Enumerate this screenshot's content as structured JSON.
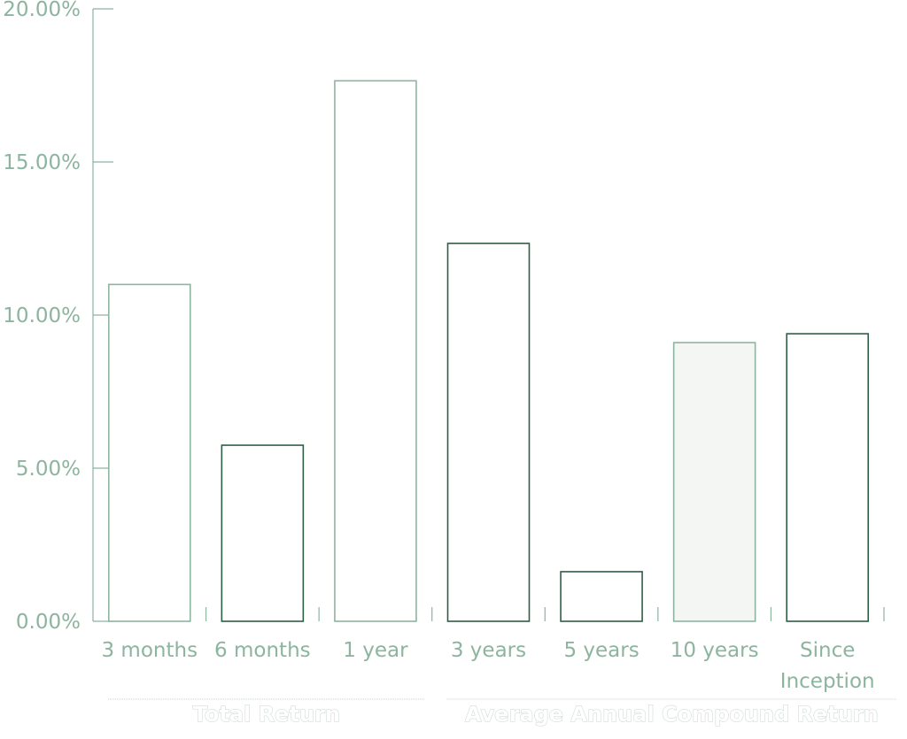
{
  "chart_data": {
    "type": "bar",
    "categories": [
      "3 months",
      "6 months",
      "1 year",
      "3 years",
      "5 years",
      "10 years",
      "Since Inception"
    ],
    "values": [
      11.0,
      5.75,
      17.65,
      12.34,
      1.62,
      9.1,
      9.39
    ],
    "colors": [
      "#8db49f",
      "#2e5e45",
      "#8db49f",
      "#2e5e45",
      "#2e5e45",
      "#8db49f",
      "#2e5e45"
    ],
    "fills": [
      "#ffffff",
      "#ffffff",
      "#ffffff",
      "#ffffff",
      "#ffffff",
      "#f4f6f4",
      "#ffffff"
    ],
    "ylim": [
      0,
      20
    ],
    "yticks": [
      {
        "value": 0,
        "label": "0.00%"
      },
      {
        "value": 5,
        "label": "5.00%"
      },
      {
        "value": 10,
        "label": "10.00%"
      },
      {
        "value": 15,
        "label": "15.00%"
      },
      {
        "value": 20,
        "label": "20.00%"
      }
    ],
    "groups": [
      {
        "label": "Total Return",
        "start": 0,
        "end": 2
      },
      {
        "label": "Average Annual Compound Return",
        "start": 3,
        "end": 6
      }
    ]
  }
}
